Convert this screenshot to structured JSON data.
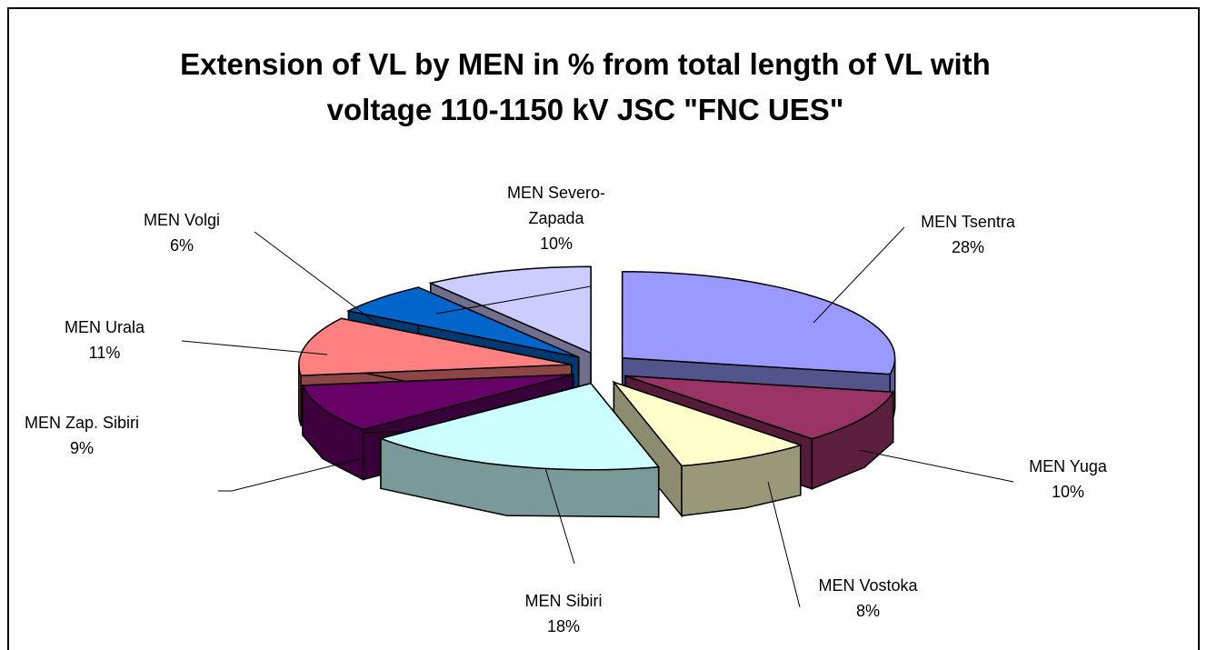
{
  "chart_data": {
    "type": "pie",
    "title": "Extension of VL by MEN in % from total length of VL with voltage 110-1150 kV JSC \"FNC UES\"",
    "categories": [
      "MEN Tsentra",
      "MEN Yuga",
      "MEN Vostoka",
      "MEN Sibiri",
      "MEN Zap. Sibiri",
      "MEN Urala",
      "MEN Volgi",
      "MEN Severo-Zapada"
    ],
    "values": [
      28,
      10,
      8,
      18,
      9,
      11,
      6,
      10
    ],
    "value_labels": [
      "28%",
      "10%",
      "8%",
      "18%",
      "9%",
      "11%",
      "6%",
      "10%"
    ],
    "colors": [
      "#9999ff",
      "#993366",
      "#ffffcc",
      "#ccffff",
      "#660066",
      "#ff8080",
      "#0066cc",
      "#ccccff"
    ]
  }
}
